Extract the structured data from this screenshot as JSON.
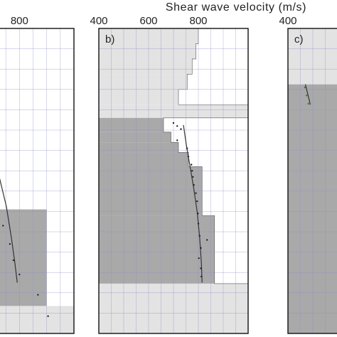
{
  "chart_data": {
    "type": "scatter",
    "xlabel": "Shear wave velocity (m/s)",
    "panels": [
      {
        "label": "",
        "xlim": [
          400,
          1000
        ],
        "xticks": [
          800
        ],
        "xtick_labels": [
          "800"
        ],
        "grid": true,
        "bands": [
          {
            "v_min": 400,
            "v_max": 900,
            "depth_from": 17.8,
            "depth_to": 27.3,
            "tone": "dark"
          },
          {
            "v_min": 400,
            "v_max": 1000,
            "depth_from": 27.3,
            "depth_to": 30.0,
            "tone": "light"
          }
        ],
        "fit_line": [
          [
            650,
            9.0
          ],
          [
            690,
            11.5
          ],
          [
            725,
            14.5
          ],
          [
            752,
            17.5
          ],
          [
            770,
            20.5
          ],
          [
            783,
            23.0
          ],
          [
            792,
            25.0
          ]
        ],
        "points": [
          [
            648,
            9.0
          ],
          [
            655,
            10.2
          ],
          [
            662,
            11.4
          ],
          [
            668,
            12.6
          ],
          [
            672,
            13.4
          ],
          [
            676,
            14.6
          ],
          [
            700,
            15.6
          ],
          [
            712,
            16.8
          ],
          [
            725,
            18.0
          ],
          [
            740,
            19.4
          ],
          [
            765,
            21.2
          ],
          [
            778,
            22.8
          ],
          [
            800,
            24.2
          ],
          [
            868,
            26.2
          ],
          [
            905,
            28.3
          ]
        ]
      },
      {
        "label": "b)",
        "xlim": [
          400,
          1000
        ],
        "xticks": [
          400,
          600,
          800
        ],
        "xtick_labels": [
          "400",
          "600",
          "800"
        ],
        "grid": true,
        "bands": [
          {
            "v_min": 400,
            "v_max": 800,
            "depth_from": 0.0,
            "depth_to": 1.5,
            "tone": "light"
          },
          {
            "v_min": 400,
            "v_max": 790,
            "depth_from": 1.5,
            "depth_to": 3.0,
            "tone": "light"
          },
          {
            "v_min": 400,
            "v_max": 775,
            "depth_from": 3.0,
            "depth_to": 4.5,
            "tone": "light"
          },
          {
            "v_min": 400,
            "v_max": 755,
            "depth_from": 4.5,
            "depth_to": 6.0,
            "tone": "light"
          },
          {
            "v_min": 400,
            "v_max": 720,
            "depth_from": 6.0,
            "depth_to": 7.5,
            "tone": "light"
          },
          {
            "v_min": 400,
            "v_max": 1000,
            "depth_from": 7.5,
            "depth_to": 8.8,
            "tone": "light"
          },
          {
            "v_min": 400,
            "v_max": 660,
            "depth_from": 8.8,
            "depth_to": 10.2,
            "tone": "dark"
          },
          {
            "v_min": 400,
            "v_max": 690,
            "depth_from": 10.2,
            "depth_to": 11.2,
            "tone": "dark"
          },
          {
            "v_min": 400,
            "v_max": 720,
            "depth_from": 11.2,
            "depth_to": 12.2,
            "tone": "dark"
          },
          {
            "v_min": 400,
            "v_max": 760,
            "depth_from": 12.2,
            "depth_to": 13.6,
            "tone": "dark"
          },
          {
            "v_min": 400,
            "v_max": 815,
            "depth_from": 13.6,
            "depth_to": 18.4,
            "tone": "dark"
          },
          {
            "v_min": 400,
            "v_max": 865,
            "depth_from": 18.4,
            "depth_to": 25.1,
            "tone": "dark"
          },
          {
            "v_min": 400,
            "v_max": 1000,
            "depth_from": 25.1,
            "depth_to": 30.0,
            "tone": "light"
          }
        ],
        "fit_line": [
          [
            740,
            9.5
          ],
          [
            752,
            11.5
          ],
          [
            766,
            13.5
          ],
          [
            780,
            15.5
          ],
          [
            795,
            18.0
          ],
          [
            805,
            20.5
          ],
          [
            812,
            23.0
          ],
          [
            815,
            25.0
          ]
        ],
        "points": [
          [
            700,
            9.3
          ],
          [
            715,
            9.6
          ],
          [
            730,
            9.9
          ],
          [
            715,
            11.0
          ],
          [
            755,
            11.8
          ],
          [
            760,
            12.6
          ],
          [
            772,
            13.4
          ],
          [
            775,
            14.0
          ],
          [
            778,
            14.6
          ],
          [
            782,
            15.4
          ],
          [
            790,
            16.2
          ],
          [
            795,
            17.0
          ],
          [
            798,
            18.2
          ],
          [
            800,
            19.2
          ],
          [
            805,
            20.4
          ],
          [
            835,
            20.8
          ],
          [
            810,
            21.6
          ],
          [
            802,
            22.6
          ],
          [
            810,
            23.6
          ],
          [
            812,
            24.4
          ]
        ]
      },
      {
        "label": "c)",
        "xlim": [
          400,
          1000
        ],
        "xticks": [
          400
        ],
        "xtick_labels": [
          "400"
        ],
        "grid": true,
        "bands": [
          {
            "v_min": 400,
            "v_max": 1000,
            "depth_from": 0.0,
            "depth_to": 5.5,
            "tone": "light"
          },
          {
            "v_min": 400,
            "v_max": 1000,
            "depth_from": 5.5,
            "depth_to": 30.0,
            "tone": "dark"
          }
        ],
        "fit_line": [
          [
            470,
            5.5
          ],
          [
            480,
            6.5
          ],
          [
            490,
            7.5
          ]
        ],
        "points": [
          [
            468,
            5.8
          ],
          [
            475,
            6.6
          ],
          [
            482,
            7.4
          ]
        ]
      }
    ]
  }
}
